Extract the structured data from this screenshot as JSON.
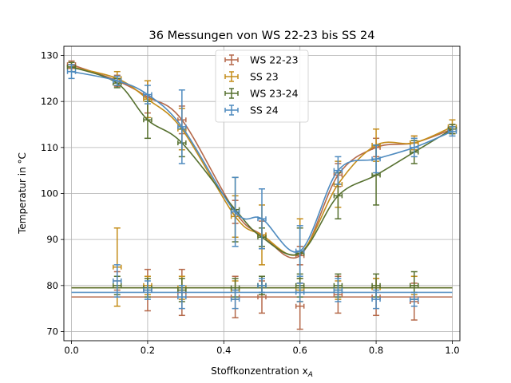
{
  "chart_data": {
    "type": "line",
    "title": "36 Messungen von WS 22-23 bis SS 24",
    "xlabel": "Stoffkonzentration x",
    "xlabel_sub": "A",
    "ylabel": "Temperatur in °C",
    "xlim": [
      -0.02,
      1.02
    ],
    "ylim": [
      68,
      132
    ],
    "xticks": [
      0.0,
      0.2,
      0.4,
      0.6,
      0.8,
      1.0
    ],
    "xtick_labels": [
      "0.0",
      "0.2",
      "0.4",
      "0.6",
      "0.8",
      "1.0"
    ],
    "yticks": [
      70,
      80,
      90,
      100,
      110,
      120,
      130
    ],
    "ytick_labels": [
      "70",
      "80",
      "90",
      "100",
      "110",
      "120",
      "130"
    ],
    "grid": true,
    "legend_position": "top-center",
    "series": [
      {
        "name": "WS 22-23",
        "color": "#b5694a",
        "x": [
          0.0,
          0.12,
          0.2,
          0.29,
          0.43,
          0.5,
          0.6,
          0.7,
          0.8,
          0.9,
          1.0
        ],
        "y": [
          128,
          124.5,
          121,
          116,
          96,
          91,
          86.5,
          104,
          110,
          111,
          114
        ],
        "yerr": [
          0.8,
          1.2,
          3.5,
          3,
          2.5,
          3,
          2,
          2.5,
          2,
          1.5,
          1
        ],
        "eutectic": 77.5,
        "eutectic_points": {
          "x": [
            0.12,
            0.2,
            0.29,
            0.43,
            0.5,
            0.6,
            0.7,
            0.8,
            0.9
          ],
          "y": [
            81,
            79,
            78.5,
            77.5,
            77.5,
            75.5,
            78,
            77.5,
            76.5
          ],
          "yerr": [
            2,
            4.5,
            5,
            4.5,
            3.5,
            5,
            4,
            4,
            4
          ]
        }
      },
      {
        "name": "SS 23",
        "color": "#c48d1a",
        "x": [
          0.0,
          0.12,
          0.2,
          0.29,
          0.43,
          0.5,
          0.6,
          0.7,
          0.8,
          0.9,
          1.0
        ],
        "y": [
          127.5,
          125,
          120.5,
          114,
          95,
          91,
          87,
          102,
          110.5,
          111,
          114.5
        ],
        "yerr": [
          1,
          1.5,
          4,
          4.5,
          4.5,
          6.5,
          7.5,
          5,
          3.5,
          1.5,
          1.5
        ],
        "eutectic": 79.5,
        "eutectic_points": {
          "x": [
            0.12,
            0.2,
            0.29,
            0.43,
            0.5,
            0.6,
            0.7,
            0.8,
            0.9
          ],
          "y": [
            84,
            80,
            79.5,
            79,
            80,
            79,
            79,
            79.5,
            80
          ],
          "yerr": [
            8.5,
            2,
            2.5,
            2,
            2,
            2.5,
            2,
            2,
            2
          ]
        }
      },
      {
        "name": "WS 23-24",
        "color": "#56702f",
        "x": [
          0.0,
          0.12,
          0.2,
          0.29,
          0.43,
          0.5,
          0.6,
          0.7,
          0.8,
          0.9,
          1.0
        ],
        "y": [
          127.5,
          124,
          116,
          111,
          96.5,
          90.5,
          87,
          99.5,
          104,
          109,
          114
        ],
        "yerr": [
          1,
          1,
          4,
          3,
          7,
          2,
          5.5,
          5,
          6.5,
          2.5,
          1
        ],
        "eutectic": 79.5,
        "eutectic_points": {
          "x": [
            0.12,
            0.2,
            0.29,
            0.43,
            0.5,
            0.6,
            0.7,
            0.8,
            0.9
          ],
          "y": [
            80,
            79.5,
            79,
            79.5,
            80,
            80,
            80,
            80,
            80
          ],
          "yerr": [
            2,
            2,
            2.5,
            2,
            2,
            2.5,
            2.5,
            2.5,
            3
          ]
        }
      },
      {
        "name": "SS 24",
        "color": "#4f8bbf",
        "x": [
          0.0,
          0.12,
          0.2,
          0.29,
          0.43,
          0.5,
          0.6,
          0.7,
          0.8,
          0.9,
          1.0
        ],
        "y": [
          126.5,
          124.5,
          121.5,
          114.5,
          96,
          94.5,
          87.5,
          105,
          107.5,
          110,
          113.5
        ],
        "yerr": [
          1.5,
          1,
          2,
          8,
          7.5,
          6.5,
          5.5,
          3,
          3,
          2,
          1
        ],
        "eutectic": 78.5,
        "eutectic_points": {
          "x": [
            0.12,
            0.2,
            0.29,
            0.43,
            0.5,
            0.6,
            0.7,
            0.8,
            0.9
          ],
          "y": [
            81,
            79,
            77.5,
            77,
            80,
            78.5,
            79,
            77,
            77
          ],
          "yerr": [
            3.5,
            2,
            2.5,
            2,
            1.5,
            2,
            2.5,
            2,
            1.5
          ]
        }
      }
    ]
  }
}
